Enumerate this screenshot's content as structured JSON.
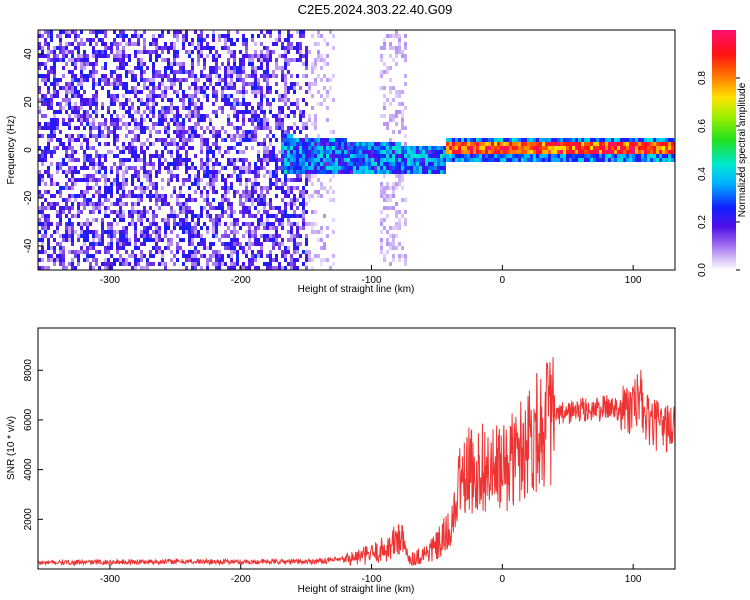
{
  "title": "C2E5.2024.303.22.40.G09",
  "chart_data": [
    {
      "type": "heatmap",
      "xlabel": "Height of straight line (km)",
      "ylabel": "Frequency (Hz)",
      "xlim": [
        -355,
        132
      ],
      "ylim": [
        -50,
        50
      ],
      "xticks": [
        -300,
        -200,
        -100,
        0,
        100
      ],
      "yticks": [
        -40,
        -20,
        0,
        20,
        40
      ],
      "colorbar": {
        "label": "Normalized spectral amplitude",
        "range": [
          0,
          1
        ],
        "ticks": [
          "0.0",
          "0.2",
          "0.4",
          "0.6",
          "0.8"
        ],
        "colormap": "rainbow (white-violet-blue-cyan-green-yellow-red-magenta)"
      },
      "features": [
        {
          "x_range": [
            -355,
            -150
          ],
          "description": "broadband noise, amplitude ~0.1-0.3"
        },
        {
          "x_range": [
            -170,
            -45
          ],
          "freq_hz": [
            -12,
            10
          ],
          "amplitude": 0.3
        },
        {
          "x_range": [
            -45,
            132
          ],
          "freq_hz": 1.5,
          "amplitude": 0.85
        }
      ],
      "grid": false
    },
    {
      "type": "line",
      "xlabel": "Height of straight line (km)",
      "ylabel": "SNR (10 * v/v)",
      "xlim": [
        -355,
        132
      ],
      "ylim": [
        0,
        9700
      ],
      "xticks": [
        -300,
        -200,
        -100,
        0,
        100
      ],
      "yticks": [
        2000,
        4000,
        6000,
        8000
      ],
      "series": [
        {
          "color": "#ee3333",
          "x": [
            -355,
            -300,
            -250,
            -200,
            -150,
            -120,
            -100,
            -85,
            -78,
            -75,
            -70,
            -60,
            -50,
            -40,
            -35,
            -32,
            -30,
            -25,
            -20,
            -15,
            -10,
            -5,
            0,
            10,
            20,
            30,
            40,
            50,
            60,
            70,
            80,
            90,
            100,
            105,
            110,
            120,
            132
          ],
          "values": [
            250,
            280,
            300,
            290,
            300,
            380,
            600,
            900,
            1400,
            800,
            400,
            600,
            900,
            1500,
            2500,
            4000,
            3500,
            4000,
            3800,
            4200,
            3800,
            4000,
            4000,
            4500,
            5300,
            5800,
            6100,
            6300,
            6400,
            6400,
            6500,
            6500,
            6400,
            7000,
            6000,
            5700,
            5700
          ]
        }
      ],
      "grid": false
    }
  ]
}
